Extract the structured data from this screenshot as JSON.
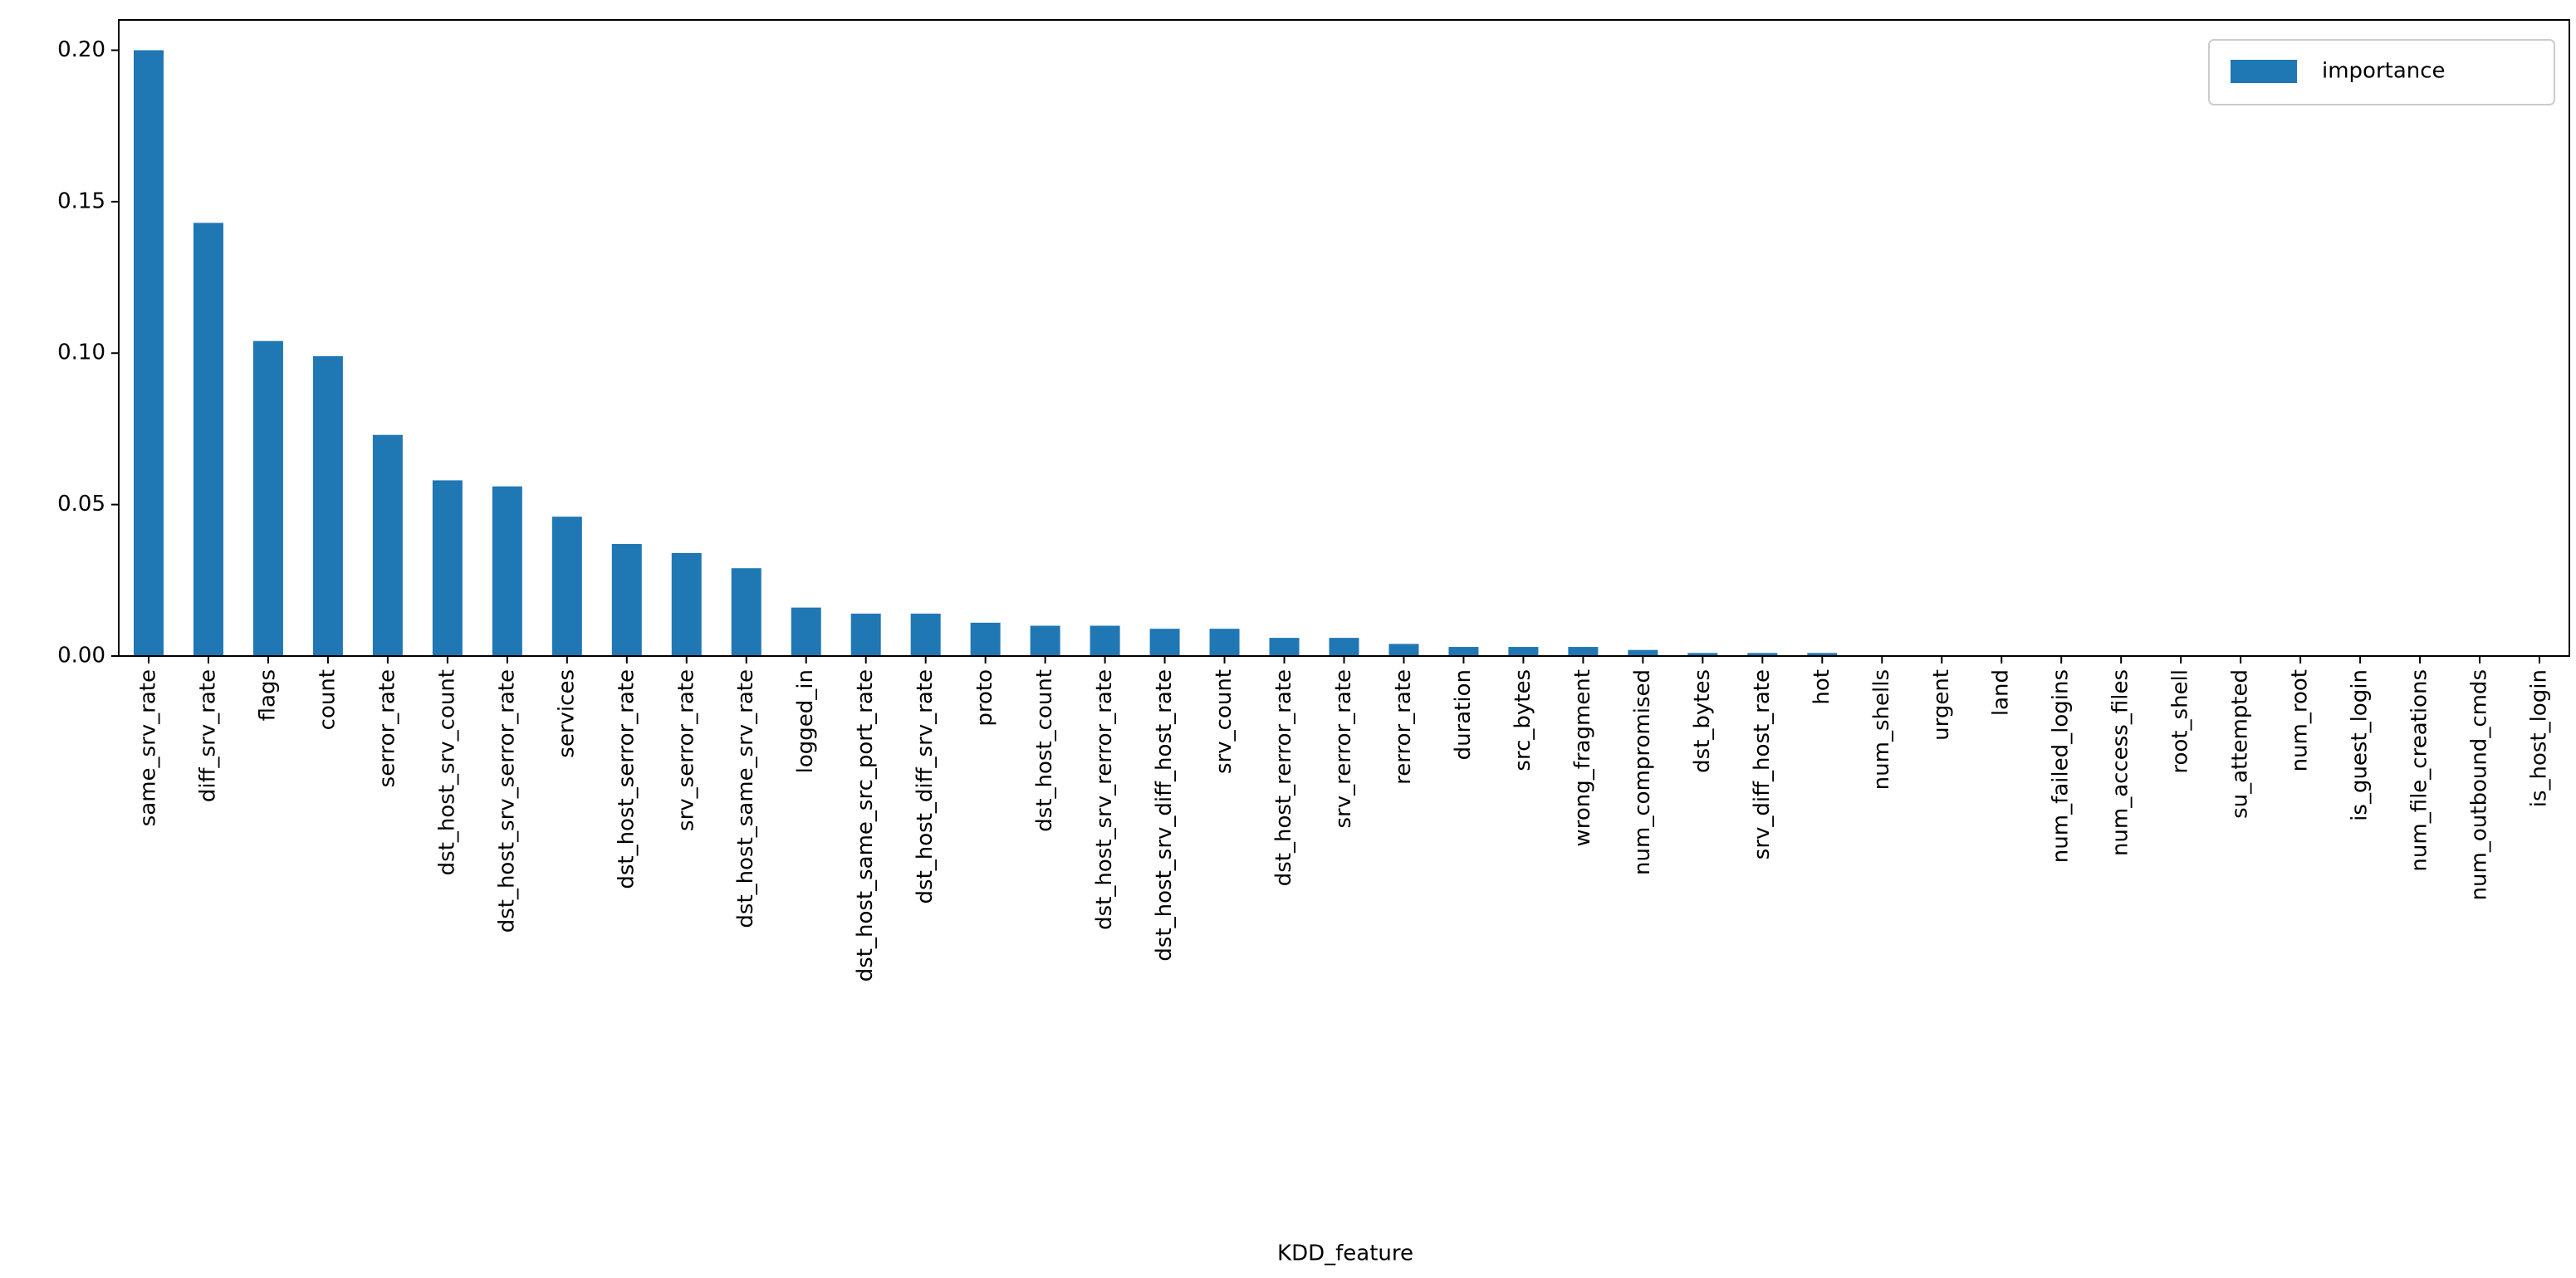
{
  "chart_data": {
    "type": "bar",
    "xlabel": "KDD_feature",
    "categories": [
      "same_srv_rate",
      "diff_srv_rate",
      "flags",
      "count",
      "serror_rate",
      "dst_host_srv_count",
      "dst_host_srv_serror_rate",
      "services",
      "dst_host_serror_rate",
      "srv_serror_rate",
      "dst_host_same_srv_rate",
      "logged_in",
      "dst_host_same_src_port_rate",
      "dst_host_diff_srv_rate",
      "proto",
      "dst_host_count",
      "dst_host_srv_rerror_rate",
      "dst_host_srv_diff_host_rate",
      "srv_count",
      "dst_host_rerror_rate",
      "srv_rerror_rate",
      "rerror_rate",
      "duration",
      "src_bytes",
      "wrong_fragment",
      "num_compromised",
      "dst_bytes",
      "srv_diff_host_rate",
      "hot",
      "num_shells",
      "urgent",
      "land",
      "num_failed_logins",
      "num_access_files",
      "root_shell",
      "su_attempted",
      "num_root",
      "is_guest_login",
      "num_file_creations",
      "num_outbound_cmds",
      "is_host_login"
    ],
    "series": [
      {
        "name": "importance",
        "color": "#1f77b4",
        "values": [
          0.2,
          0.143,
          0.104,
          0.099,
          0.073,
          0.058,
          0.056,
          0.046,
          0.037,
          0.034,
          0.029,
          0.016,
          0.014,
          0.014,
          0.011,
          0.01,
          0.01,
          0.009,
          0.009,
          0.006,
          0.006,
          0.004,
          0.003,
          0.003,
          0.003,
          0.002,
          0.001,
          0.001,
          0.001,
          0,
          0,
          0,
          0,
          0,
          0,
          0,
          0,
          0,
          0,
          0,
          0
        ]
      }
    ],
    "ylim": [
      0,
      0.21
    ],
    "yticks": [
      {
        "value": 0,
        "label": "0.00"
      },
      {
        "value": 0.05,
        "label": "0.05"
      },
      {
        "value": 0.1,
        "label": "0.10"
      },
      {
        "value": 0.15,
        "label": "0.15"
      },
      {
        "value": 0.2,
        "label": "0.20"
      }
    ],
    "legend": "upper right"
  }
}
